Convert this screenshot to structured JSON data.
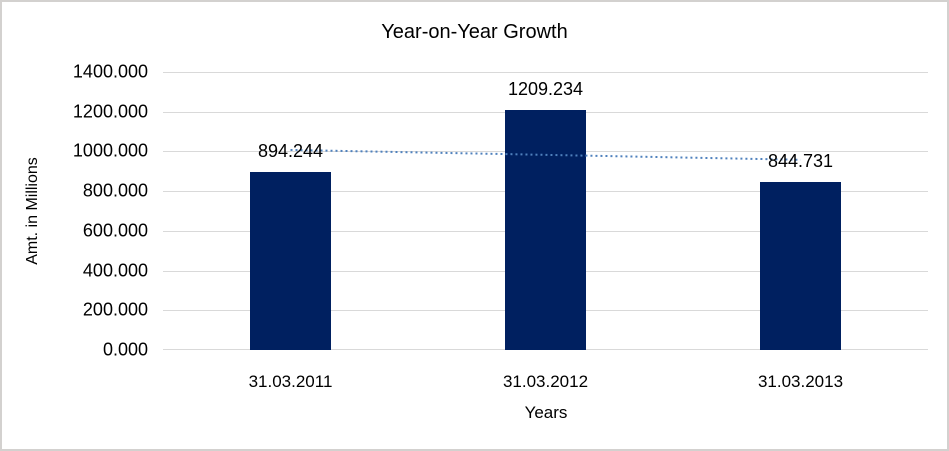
{
  "chart_data": {
    "type": "bar",
    "title": "Year-on-Year Growth",
    "xlabel": "Years",
    "ylabel": "Amt. in Millions",
    "categories": [
      "31.03.2011",
      "31.03.2012",
      "31.03.2013"
    ],
    "values": [
      894.244,
      1209.234,
      844.731
    ],
    "value_labels": [
      "894.244",
      "1209.234",
      "844.731"
    ],
    "ylim": [
      0,
      1400
    ],
    "ytick_step": 200,
    "ytick_labels": [
      "0.000",
      "200.000",
      "400.000",
      "600.000",
      "800.000",
      "1000.000",
      "1200.000",
      "1400.000"
    ],
    "grid": true,
    "legend": "none",
    "bar_color": "#002060",
    "gridline_color": "#d9d9d9",
    "trendline": {
      "type": "linear",
      "style": "dotted",
      "color": "#4f81bd",
      "start_value": 1007.5,
      "end_value": 957.9
    }
  }
}
